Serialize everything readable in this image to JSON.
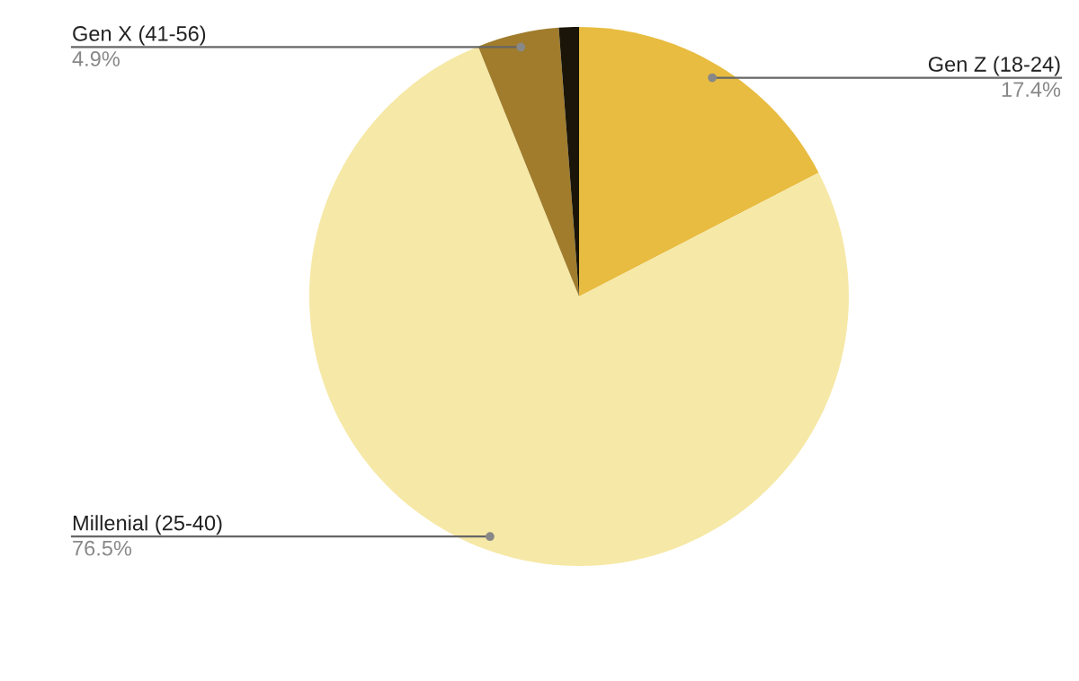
{
  "chart_data": {
    "type": "pie",
    "categories": [
      "Gen Z (18-24)",
      "Millenial (25-40)",
      "Gen X (41-56)",
      null
    ],
    "values": [
      17.4,
      76.5,
      4.9,
      1.2
    ],
    "value_labels": [
      "17.4%",
      "76.5%",
      "4.9%",
      null
    ],
    "colors": [
      "#e8bc40",
      "#f6e8a6",
      "#a07c2c",
      "#1a1508"
    ],
    "legend": false
  }
}
